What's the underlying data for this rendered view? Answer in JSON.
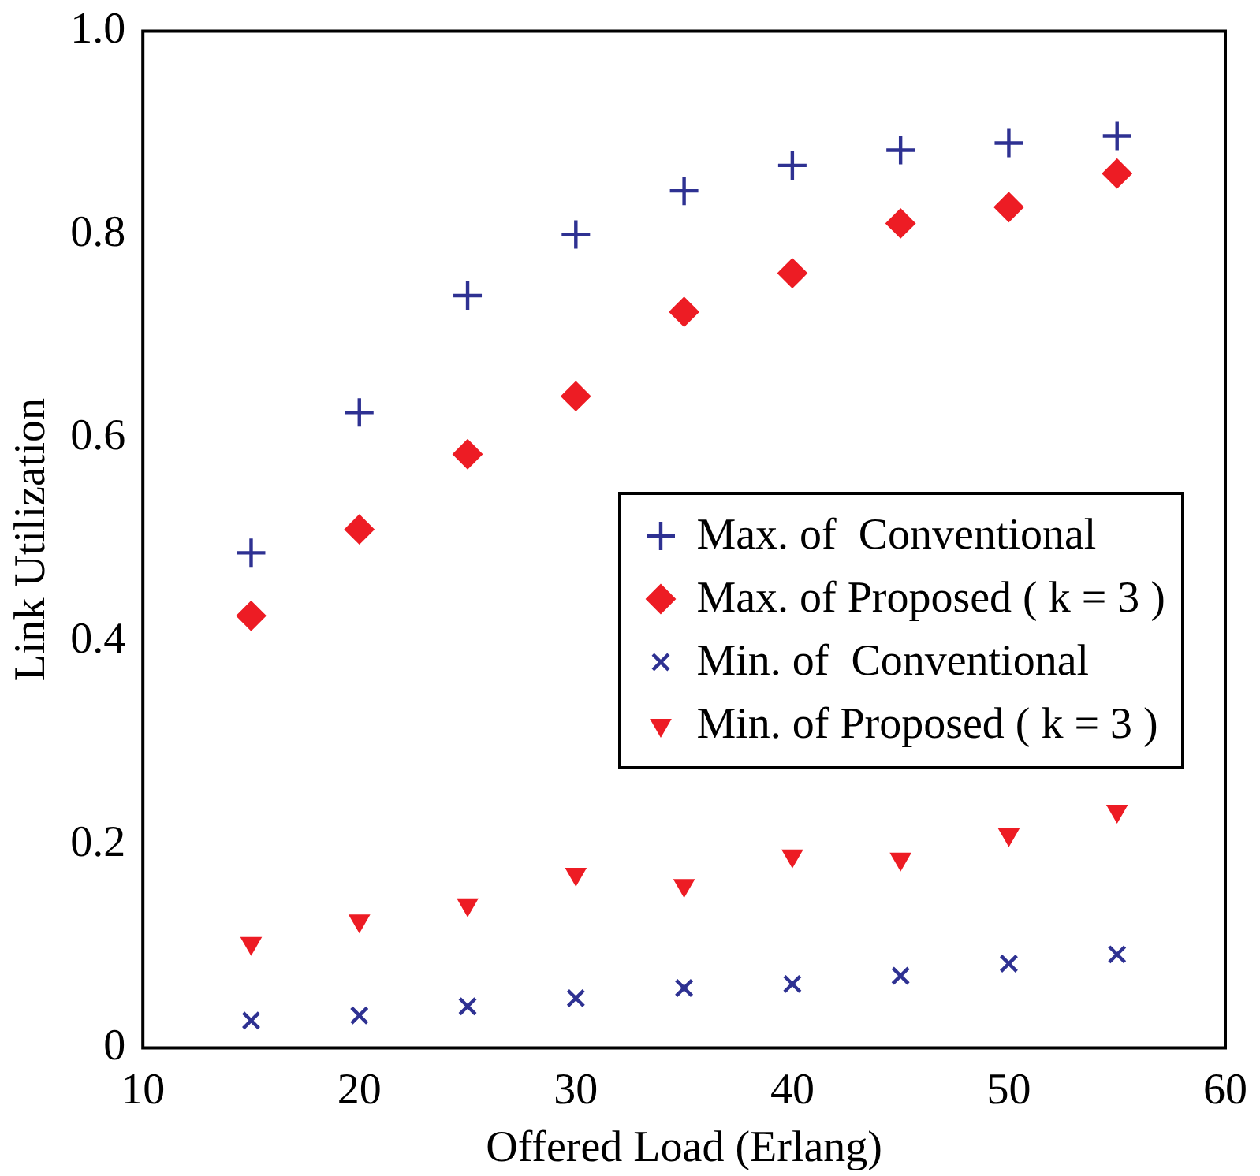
{
  "chart_data": {
    "type": "scatter",
    "xlabel": "Offered Load (Erlang)",
    "ylabel": "Link Utilization",
    "x": [
      15,
      20,
      25,
      30,
      35,
      40,
      45,
      50,
      55
    ],
    "series": [
      {
        "name": "Max. of  Conventional",
        "color": "#2e3192",
        "marker": "cross",
        "values": [
          0.487,
          0.625,
          0.74,
          0.8,
          0.843,
          0.868,
          0.883,
          0.89,
          0.897
        ]
      },
      {
        "name": "Max. of Proposed ( k = 3 )",
        "color": "#ed1c24",
        "marker": "diamond",
        "values": [
          0.425,
          0.51,
          0.584,
          0.641,
          0.724,
          0.762,
          0.811,
          0.827,
          0.86
        ]
      },
      {
        "name": "Min. of  Conventional",
        "color": "#2e3192",
        "marker": "x",
        "values": [
          0.027,
          0.032,
          0.041,
          0.049,
          0.059,
          0.063,
          0.071,
          0.083,
          0.092
        ]
      },
      {
        "name": "Min. of Proposed ( k = 3 )",
        "color": "#ed1c24",
        "marker": "triangle-down",
        "values": [
          0.103,
          0.125,
          0.141,
          0.171,
          0.16,
          0.189,
          0.186,
          0.21,
          0.233
        ]
      }
    ],
    "xlim": [
      10,
      60
    ],
    "xticks": [
      10,
      20,
      30,
      40,
      50,
      60
    ],
    "ylim": [
      0,
      1
    ],
    "yticks": [
      0,
      0.2,
      0.4,
      0.6,
      0.8,
      {
        "value": 1,
        "label": "1.0"
      }
    ],
    "grid": false,
    "legend": "right"
  }
}
